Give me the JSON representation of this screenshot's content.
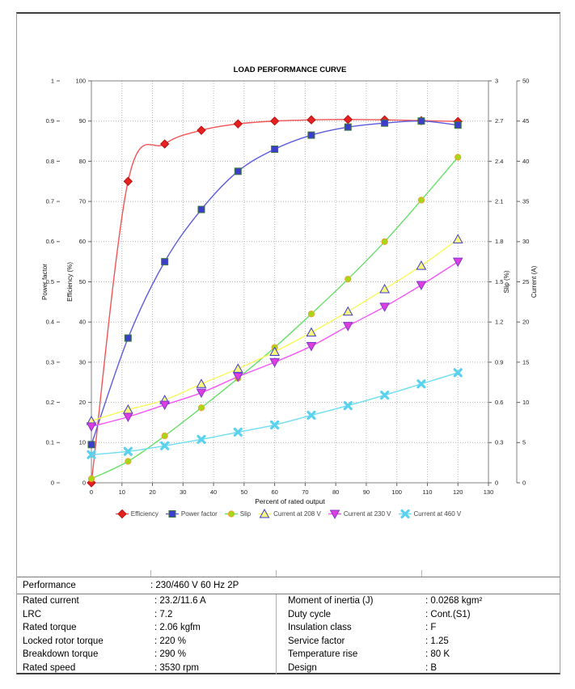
{
  "chart_data": {
    "type": "line",
    "title": "LOAD PERFORMANCE CURVE",
    "xlabel": "Percent of rated output",
    "grid": true,
    "legend_position": "bottom",
    "x_tick_labels": [
      "0",
      "10",
      "20",
      "30",
      "40",
      "50",
      "60",
      "70",
      "80",
      "90",
      "100",
      "110",
      "120",
      "130"
    ],
    "axes": {
      "power_factor": {
        "label": "Power factor",
        "min": 0,
        "max": 1,
        "side": "left-outer",
        "tick_labels": [
          "0",
          "0.1",
          "0.2",
          "0.3",
          "0.4",
          "0.5",
          "0.6",
          "0.7",
          "0.8",
          "0.9",
          "1"
        ]
      },
      "efficiency": {
        "label": "Efficiency (%)",
        "min": 0,
        "max": 100,
        "side": "left-inner",
        "tick_labels": [
          "0",
          "10",
          "20",
          "30",
          "40",
          "50",
          "60",
          "70",
          "80",
          "90",
          "100"
        ]
      },
      "slip": {
        "label": "Slip (%)",
        "min": 0,
        "max": 3,
        "side": "right-inner",
        "tick_labels": [
          "0",
          "0.3",
          "0.6",
          "0.9",
          "1.2",
          "1.5",
          "1.8",
          "2.1",
          "2.4",
          "2.7",
          "3"
        ]
      },
      "current": {
        "label": "Current (A)",
        "min": 0,
        "max": 50,
        "side": "right-outer",
        "tick_labels": [
          "0",
          "5",
          "10",
          "15",
          "20",
          "25",
          "30",
          "35",
          "40",
          "45",
          "50"
        ]
      }
    },
    "x": [
      0,
      12,
      24,
      36,
      48,
      60,
      72,
      84,
      96,
      108,
      120
    ],
    "series": [
      {
        "name": "Efficiency",
        "axis": "efficiency",
        "marker": "diamond",
        "color": "#f05454",
        "marker_fill": "#e32222",
        "marker_stroke": "#c01010",
        "values": [
          0,
          75,
          84.3,
          87.7,
          89.3,
          90.0,
          90.3,
          90.4,
          90.3,
          90.1,
          89.9
        ]
      },
      {
        "name": "Power factor",
        "axis": "power_factor",
        "marker": "square",
        "color": "#5b5bdd",
        "marker_fill": "#3d3dcc",
        "marker_stroke": "#3b7a3b",
        "values": [
          0.095,
          0.36,
          0.55,
          0.68,
          0.775,
          0.83,
          0.865,
          0.885,
          0.895,
          0.9,
          0.89
        ]
      },
      {
        "name": "Slip",
        "axis": "slip",
        "marker": "circle",
        "color": "#66e066",
        "marker_fill": "#a3d916",
        "marker_stroke": "#f0a028",
        "values": [
          0.03,
          0.16,
          0.35,
          0.56,
          0.78,
          1.01,
          1.26,
          1.52,
          1.8,
          2.11,
          2.43
        ]
      },
      {
        "name": "Current at 208 V",
        "axis": "current",
        "marker": "triangle-up",
        "color": "#f8f85a",
        "marker_fill": "#f7f780",
        "marker_stroke": "#3c3ccc",
        "values": [
          7.7,
          9.1,
          10.3,
          12.3,
          14.2,
          16.3,
          18.7,
          21.3,
          24.1,
          27.0,
          30.3
        ]
      },
      {
        "name": "Current at 230 V",
        "axis": "current",
        "marker": "triangle-down",
        "color": "#f755f7",
        "marker_fill": "#e03ce0",
        "marker_stroke": "#7a3cc8",
        "values": [
          7.0,
          8.2,
          9.7,
          11.2,
          13.2,
          15.0,
          17.0,
          19.5,
          21.9,
          24.6,
          27.5
        ]
      },
      {
        "name": "Current at 460 V",
        "axis": "current",
        "marker": "x",
        "color": "#6edef2",
        "marker_fill": "#5ad2ee",
        "marker_stroke": "#5ad2ee",
        "values": [
          3.5,
          3.9,
          4.6,
          5.4,
          6.3,
          7.2,
          8.4,
          9.6,
          10.9,
          12.3,
          13.7
        ]
      }
    ]
  },
  "table": {
    "performance_label": "Performance",
    "performance_value": ": 230/460 V 60 Hz 2P",
    "left_rows": [
      {
        "label": "Rated current",
        "value": ": 23.2/11.6 A"
      },
      {
        "label": "LRC",
        "value": ": 7.2"
      },
      {
        "label": "Rated torque",
        "value": ": 2.06 kgfm"
      },
      {
        "label": "Locked rotor torque",
        "value": ": 220 %"
      },
      {
        "label": "Breakdown torque",
        "value": ": 290 %"
      },
      {
        "label": "Rated speed",
        "value": ": 3530 rpm"
      }
    ],
    "right_rows": [
      {
        "label": "Moment of inertia (J)",
        "value": ": 0.0268 kgm²"
      },
      {
        "label": "Duty cycle",
        "value": ": Cont.(S1)"
      },
      {
        "label": "Insulation class",
        "value": ": F"
      },
      {
        "label": "Service factor",
        "value": ": 1.25"
      },
      {
        "label": "Temperature rise",
        "value": ": 80 K"
      },
      {
        "label": "Design",
        "value": ": B"
      }
    ]
  }
}
